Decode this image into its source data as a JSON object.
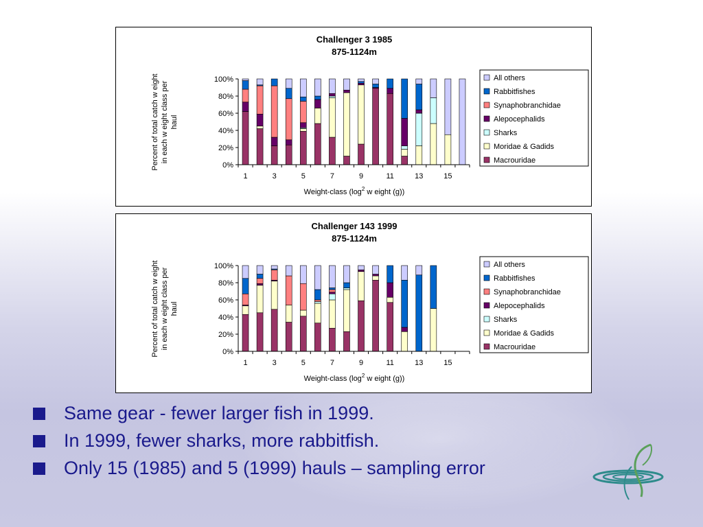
{
  "colors": {
    "Macrouridae": "#993366",
    "Moridae & Gadids": "#ffffcc",
    "Sharks": "#ccffff",
    "Alepocephalids": "#660066",
    "Synaphobranchidae": "#ff8080",
    "Rabbitfishes": "#0066cc",
    "All others": "#ccccff",
    "bullet_text": "#1a1a8c"
  },
  "chart_data": [
    {
      "type": "bar",
      "stacked": "percent",
      "title": "Challenger 3 1985",
      "subtitle": "875-1124m",
      "xlabel_main": "Weight-class (log",
      "xlabel_sup": "2",
      "xlabel_tail": " w eight (g))",
      "ylabel_lines": [
        "Percent of total catch w eight",
        "in each w eight class per",
        "haul"
      ],
      "ylim": [
        0,
        100
      ],
      "yticks": [
        "0%",
        "20%",
        "40%",
        "60%",
        "80%",
        "100%"
      ],
      "x": [
        1,
        2,
        3,
        4,
        5,
        6,
        7,
        8,
        9,
        10,
        11,
        12,
        13,
        14,
        15,
        16
      ],
      "xtick_labels": [
        "1",
        "3",
        "5",
        "7",
        "9",
        "11",
        "13",
        "15"
      ],
      "legend_order": [
        "All others",
        "Rabbitfishes",
        "Synaphobranchidae",
        "Alepocephalids",
        "Sharks",
        "Moridae & Gadids",
        "Macrouridae"
      ],
      "legend_position": "right",
      "series": [
        {
          "name": "Macrouridae",
          "values": [
            62,
            42,
            22,
            23,
            39,
            48,
            32,
            10,
            24,
            89,
            83,
            10,
            0,
            0,
            0,
            0
          ]
        },
        {
          "name": "Moridae & Gadids",
          "values": [
            0,
            3,
            0,
            0,
            3,
            18,
            46,
            74,
            69,
            0,
            0,
            8,
            22,
            48,
            35,
            0
          ]
        },
        {
          "name": "Sharks",
          "values": [
            0,
            0,
            0,
            0,
            1,
            0,
            2,
            0,
            0,
            0,
            0,
            4,
            38,
            30,
            0,
            0
          ]
        },
        {
          "name": "Alepocephalids",
          "values": [
            11,
            14,
            10,
            6,
            6,
            10,
            3,
            3,
            2,
            1,
            6,
            32,
            4,
            0,
            0,
            0
          ]
        },
        {
          "name": "Synaphobranchidae",
          "values": [
            15,
            33,
            60,
            48,
            25,
            0,
            0,
            0,
            0,
            0,
            0,
            0,
            0,
            0,
            0,
            0
          ]
        },
        {
          "name": "Rabbitfishes",
          "values": [
            10,
            1,
            8,
            12,
            5,
            4,
            0,
            0,
            2,
            4,
            11,
            46,
            30,
            0,
            0,
            0
          ]
        },
        {
          "name": "All others",
          "values": [
            2,
            7,
            0,
            11,
            21,
            20,
            17,
            13,
            3,
            6,
            0,
            0,
            6,
            22,
            65,
            100
          ]
        }
      ]
    },
    {
      "type": "bar",
      "stacked": "percent",
      "title": "Challenger 143 1999",
      "subtitle": "875-1124m",
      "xlabel_main": "Weight-class (log",
      "xlabel_sup": "2",
      "xlabel_tail": " w eight (g))",
      "ylabel_lines": [
        "Percent of total catch w eight",
        "in each w eight class per",
        "haul"
      ],
      "ylim": [
        0,
        100
      ],
      "yticks": [
        "0%",
        "20%",
        "40%",
        "60%",
        "80%",
        "100%"
      ],
      "x": [
        1,
        2,
        3,
        4,
        5,
        6,
        7,
        8,
        9,
        10,
        11,
        12,
        13,
        14,
        15,
        16
      ],
      "xtick_labels": [
        "1",
        "3",
        "5",
        "7",
        "9",
        "11",
        "13",
        "15"
      ],
      "legend_order": [
        "All others",
        "Rabbitfishes",
        "Synaphobranchidae",
        "Alepocephalids",
        "Sharks",
        "Moridae & Gadids",
        "Macrouridae"
      ],
      "legend_position": "right",
      "series": [
        {
          "name": "Macrouridae",
          "values": [
            43,
            45,
            49,
            34,
            41,
            33,
            27,
            23,
            59,
            83,
            57,
            0,
            0,
            0,
            0,
            0
          ]
        },
        {
          "name": "Moridae & Gadids",
          "values": [
            10,
            32,
            33,
            20,
            7,
            23,
            33,
            49,
            34,
            5,
            6,
            23,
            0,
            50,
            0,
            0
          ]
        },
        {
          "name": "Sharks",
          "values": [
            0,
            0,
            0,
            0,
            0,
            2,
            7,
            2,
            0,
            0,
            0,
            0,
            0,
            0,
            0,
            0
          ]
        },
        {
          "name": "Alepocephalids",
          "values": [
            1,
            2,
            1,
            0,
            0,
            0,
            2,
            0,
            2,
            2,
            17,
            5,
            0,
            0,
            0,
            0
          ]
        },
        {
          "name": "Synaphobranchidae",
          "values": [
            13,
            6,
            12,
            34,
            31,
            2,
            3,
            0,
            0,
            0,
            0,
            0,
            0,
            0,
            0,
            0
          ]
        },
        {
          "name": "Rabbitfishes",
          "values": [
            18,
            5,
            1,
            0,
            0,
            12,
            2,
            6,
            0,
            0,
            20,
            55,
            89,
            50,
            0,
            0
          ]
        },
        {
          "name": "All others",
          "values": [
            15,
            10,
            4,
            12,
            21,
            28,
            26,
            20,
            5,
            10,
            0,
            17,
            11,
            0,
            0,
            0
          ]
        }
      ]
    }
  ],
  "bullets": [
    "Same gear - fewer larger fish in 1999.",
    "In 1999, fewer sharks, more rabbitfish.",
    "Only 15 (1985) and 5 (1999) hauls – sampling error"
  ]
}
